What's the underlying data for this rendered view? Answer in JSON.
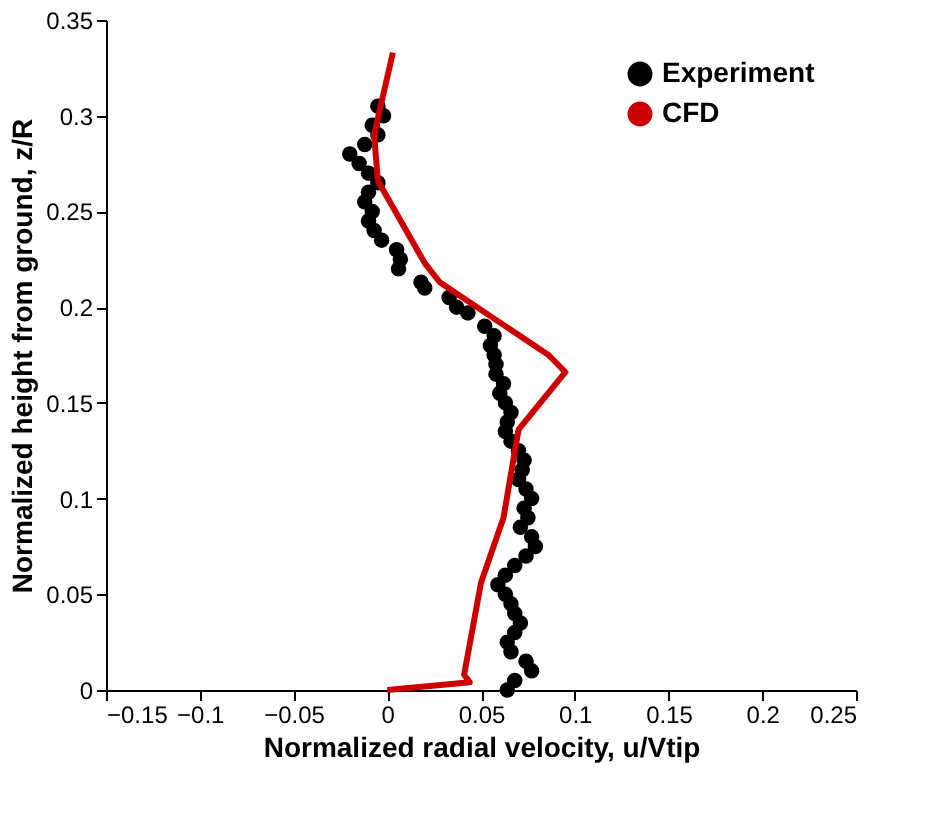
{
  "chart_data": {
    "type": "scatter",
    "xlabel": "Normalized radial velocity, u/Vtip",
    "ylabel": "Normalized height from ground, z/R",
    "xlim": [
      -0.15,
      0.25
    ],
    "xticks": [
      -0.15,
      -0.1,
      -0.05,
      0,
      0.05,
      0.1,
      0.15,
      0.2,
      0.25
    ],
    "ylim": [
      0,
      0.35
    ],
    "yticks": [
      0,
      0.05,
      0.1,
      0.15,
      0.2,
      0.25,
      0.3,
      0.35
    ],
    "grid": false,
    "legend": "top right",
    "series": [
      {
        "name": "Experiment",
        "type": "scatter",
        "marker": "circle",
        "color": "#000000",
        "x": [
          -0.005,
          -0.002,
          -0.008,
          -0.005,
          -0.012,
          -0.02,
          -0.015,
          -0.01,
          -0.005,
          -0.01,
          -0.012,
          -0.008,
          -0.01,
          -0.007,
          -0.003,
          0.005,
          0.007,
          0.006,
          0.018,
          0.02,
          0.033,
          0.037,
          0.043,
          0.052,
          0.057,
          0.055,
          0.057,
          0.058,
          0.058,
          0.062,
          0.06,
          0.063,
          0.066,
          0.064,
          0.063,
          0.066,
          0.07,
          0.073,
          0.072,
          0.07,
          0.074,
          0.077,
          0.073,
          0.075,
          0.071,
          0.077,
          0.079,
          0.074,
          0.068,
          0.063,
          0.059,
          0.063,
          0.066,
          0.068,
          0.071,
          0.068,
          0.064,
          0.066,
          0.074,
          0.077,
          0.068,
          0.064
        ],
        "values": [
          0.305,
          0.3,
          0.295,
          0.29,
          0.285,
          0.28,
          0.275,
          0.27,
          0.265,
          0.26,
          0.255,
          0.25,
          0.245,
          0.24,
          0.235,
          0.23,
          0.225,
          0.22,
          0.213,
          0.21,
          0.205,
          0.2,
          0.197,
          0.19,
          0.185,
          0.18,
          0.175,
          0.17,
          0.165,
          0.16,
          0.155,
          0.15,
          0.145,
          0.14,
          0.135,
          0.13,
          0.125,
          0.12,
          0.115,
          0.11,
          0.105,
          0.1,
          0.095,
          0.09,
          0.085,
          0.08,
          0.075,
          0.07,
          0.065,
          0.06,
          0.055,
          0.05,
          0.045,
          0.04,
          0.035,
          0.03,
          0.025,
          0.02,
          0.015,
          0.01,
          0.005,
          0.0
        ]
      },
      {
        "name": "CFD",
        "type": "line",
        "line_style": "solid",
        "color": "#cc0000",
        "x": [
          0,
          0.044,
          0.041,
          0.05,
          0.062,
          0.07,
          0.095,
          0.086,
          0.028,
          0.02,
          -0.005,
          -0.007,
          0.003
        ],
        "values": [
          0,
          0.004,
          0.008,
          0.056,
          0.09,
          0.136,
          0.166,
          0.175,
          0.213,
          0.223,
          0.266,
          0.29,
          0.333
        ]
      }
    ]
  }
}
